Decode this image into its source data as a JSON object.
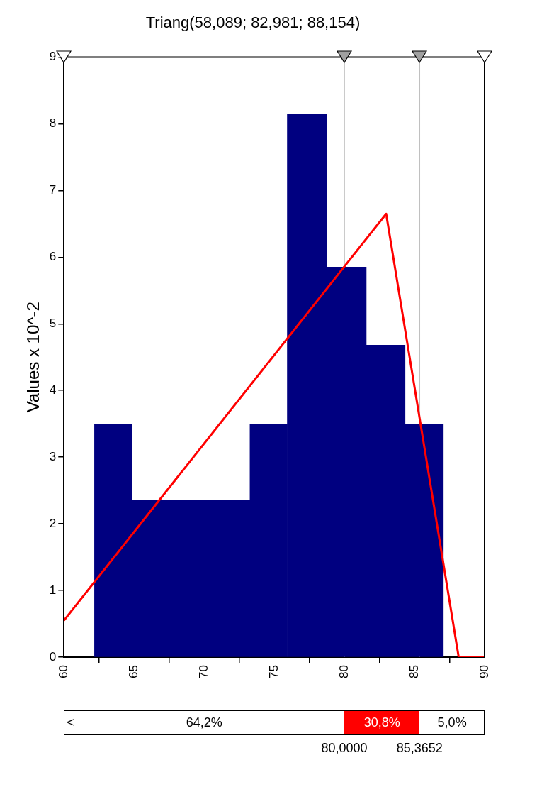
{
  "chart_data": {
    "type": "histogram",
    "title": "Triang(58,089; 82,981; 88,154)",
    "ylabel": "Values x 10^-2",
    "series": [
      {
        "type": "histogram",
        "bins": [
          62.18,
          64.84,
          67.64,
          70.43,
          73.27,
          75.93,
          78.76,
          81.56,
          84.33,
          87.06
        ],
        "values": [
          3.5,
          2.35,
          2.35,
          2.35,
          3.5,
          8.15,
          5.85,
          4.68,
          3.5
        ],
        "color": "#000080"
      },
      {
        "type": "line",
        "x": [
          60,
          82.981,
          88.154,
          90
        ],
        "values": [
          0.55,
          6.65,
          0,
          0
        ],
        "color": "#ff0000"
      }
    ],
    "xlim": [
      60,
      90
    ],
    "xticks": [
      60,
      65,
      70,
      75,
      80,
      85,
      90
    ],
    "ylim": [
      0,
      9
    ],
    "yticks": [
      0,
      1,
      2,
      3,
      4,
      5,
      6,
      7,
      8,
      9
    ],
    "grid": false,
    "legend": false,
    "ref_lines": [
      {
        "axis": "x",
        "value": 80,
        "color": "#c0c0c0"
      },
      {
        "axis": "x",
        "value": 85.3652,
        "color": "#c0c0c0"
      }
    ],
    "annotations": [
      "<",
      "64,2%",
      "30,8%",
      "5,0%",
      "80,0000",
      "85,3652"
    ]
  }
}
